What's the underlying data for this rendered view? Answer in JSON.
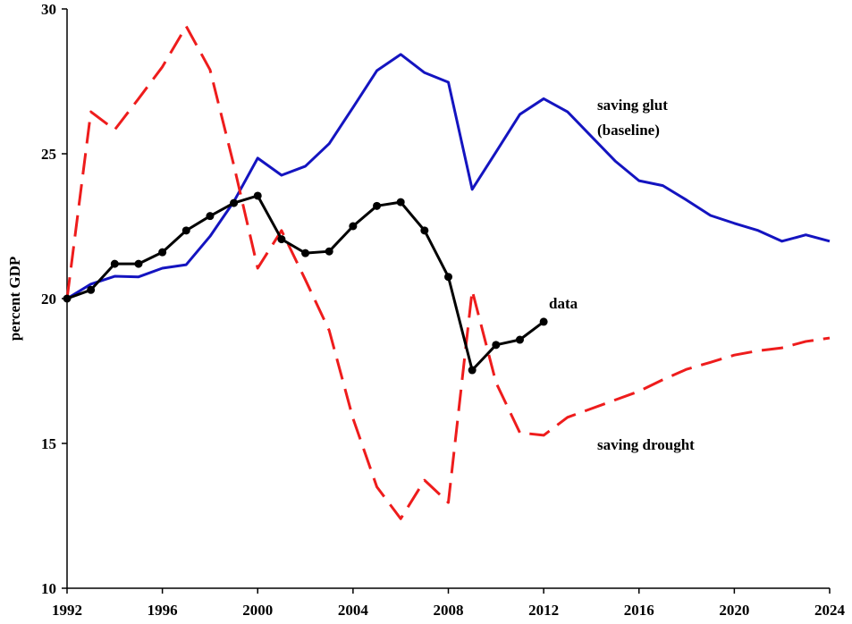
{
  "chart_data": {
    "type": "line",
    "y_label": "percent GDP",
    "x": [
      1992,
      1993,
      1994,
      1995,
      1996,
      1997,
      1998,
      1999,
      2000,
      2001,
      2002,
      2003,
      2004,
      2005,
      2006,
      2007,
      2008,
      2009,
      2010,
      2011,
      2012,
      2013,
      2014,
      2015,
      2016,
      2017,
      2018,
      2019,
      2020,
      2021,
      2022,
      2023,
      2024
    ],
    "xlim": [
      1992,
      2024
    ],
    "xticks": [
      1992,
      1996,
      2000,
      2004,
      2008,
      2012,
      2016,
      2020,
      2024
    ],
    "ylim": [
      10,
      30
    ],
    "yticks": [
      10,
      15,
      20,
      25,
      30
    ],
    "series": [
      {
        "name": "saving glut (baseline)",
        "color": "#1414c0",
        "style": "solid",
        "markers": false,
        "values": [
          20.0,
          20.5,
          20.77,
          20.75,
          21.05,
          21.17,
          22.15,
          23.35,
          24.85,
          24.26,
          24.57,
          25.35,
          26.6,
          27.87,
          28.43,
          27.8,
          27.47,
          23.77,
          25.06,
          26.36,
          26.9,
          26.45,
          25.6,
          24.75,
          24.07,
          23.9,
          23.4,
          22.87,
          22.6,
          22.35,
          21.98,
          22.2,
          21.98
        ]
      },
      {
        "name": "saving drought",
        "color": "#ee1c1c",
        "style": "dashed",
        "markers": false,
        "values": [
          20.0,
          26.45,
          25.83,
          26.9,
          28.0,
          29.4,
          27.9,
          24.6,
          21.05,
          22.35,
          20.65,
          18.9,
          15.86,
          13.5,
          12.4,
          13.73,
          12.96,
          20.28,
          17.1,
          15.37,
          15.28,
          15.9,
          16.2,
          16.5,
          16.8,
          17.2,
          17.56,
          17.8,
          18.05,
          18.2,
          18.3,
          18.52,
          18.64
        ]
      },
      {
        "name": "data",
        "color": "#000000",
        "style": "solid",
        "markers": true,
        "values": [
          20.0,
          20.3,
          21.2,
          21.2,
          21.6,
          22.35,
          22.85,
          23.3,
          23.55,
          22.05,
          21.57,
          21.63,
          22.5,
          23.2,
          23.33,
          22.35,
          20.75,
          17.53,
          18.4,
          18.58,
          19.2,
          null,
          null,
          null,
          null,
          null,
          null,
          null,
          null,
          null,
          null,
          null,
          null
        ]
      }
    ]
  }
}
